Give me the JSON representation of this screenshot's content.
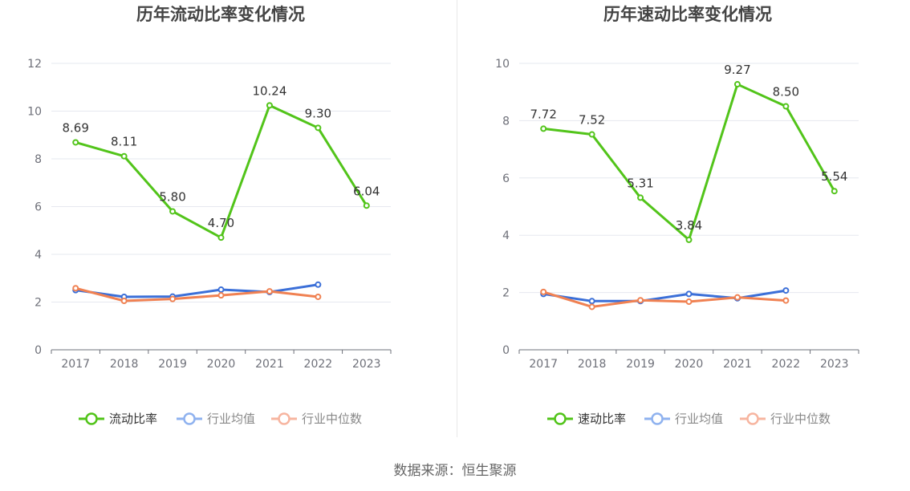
{
  "colors": {
    "primary": "#52c41a",
    "industry_avg": "#3b6fd8",
    "industry_median": "#f08152",
    "legend_avg": "#8fb2ef",
    "legend_median": "#f7b5a0",
    "grid": "#e6e8ef",
    "axis": "#6e7079"
  },
  "source_note": "数据来源：恒生聚源",
  "chart_data": [
    {
      "type": "line",
      "title": "历年流动比率变化情况",
      "categories": [
        "2017",
        "2018",
        "2019",
        "2020",
        "2021",
        "2022",
        "2023"
      ],
      "ylim": [
        0,
        12
      ],
      "yticks": [
        0,
        2,
        4,
        6,
        8,
        10,
        12
      ],
      "grid": true,
      "legend_position": "bottom",
      "series": [
        {
          "name": "流动比率",
          "values": [
            8.69,
            8.11,
            5.8,
            4.7,
            10.24,
            9.3,
            6.04
          ],
          "labels": [
            "8.69",
            "8.11",
            "5.80",
            "4.70",
            "10.24",
            "9.30",
            "6.04"
          ],
          "color": "#52c41a"
        },
        {
          "name": "行业均值",
          "values": [
            2.5,
            2.22,
            2.23,
            2.52,
            2.42,
            2.73,
            null
          ],
          "color": "#3b6fd8"
        },
        {
          "name": "行业中位数",
          "values": [
            2.58,
            2.05,
            2.13,
            2.28,
            2.45,
            2.22,
            null
          ],
          "color": "#f08152"
        }
      ]
    },
    {
      "type": "line",
      "title": "历年速动比率变化情况",
      "categories": [
        "2017",
        "2018",
        "2019",
        "2020",
        "2021",
        "2022",
        "2023"
      ],
      "ylim": [
        0,
        10
      ],
      "yticks": [
        0,
        2,
        4,
        6,
        8,
        10
      ],
      "grid": true,
      "legend_position": "bottom",
      "series": [
        {
          "name": "速动比率",
          "values": [
            7.72,
            7.52,
            5.31,
            3.84,
            9.27,
            8.5,
            5.54
          ],
          "labels": [
            "7.72",
            "7.52",
            "5.31",
            "3.84",
            "9.27",
            "8.50",
            "5.54"
          ],
          "color": "#52c41a"
        },
        {
          "name": "行业均值",
          "values": [
            1.95,
            1.7,
            1.7,
            1.95,
            1.8,
            2.07,
            null
          ],
          "color": "#3b6fd8"
        },
        {
          "name": "行业中位数",
          "values": [
            2.02,
            1.5,
            1.73,
            1.68,
            1.83,
            1.72,
            null
          ],
          "color": "#f08152"
        }
      ]
    }
  ]
}
